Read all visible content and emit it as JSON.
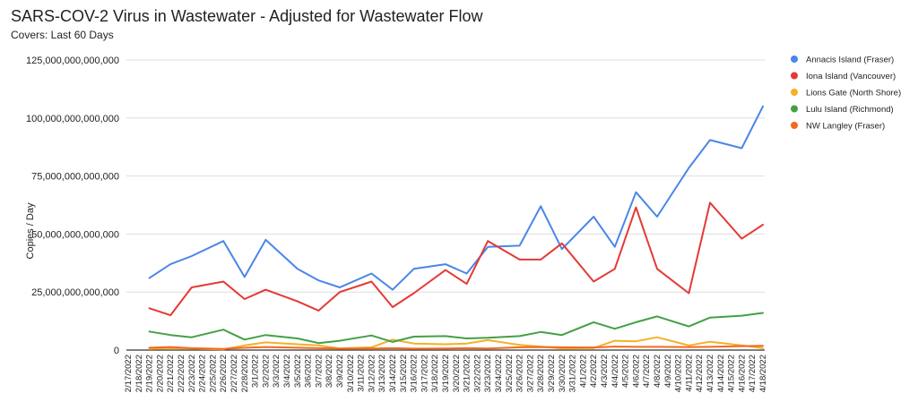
{
  "chart_data": {
    "type": "line",
    "title": "SARS-COV-2 Virus in Wastewater - Adjusted for Wastewater Flow",
    "subtitle": "Covers: Last 60 Days",
    "ylabel": "Copies / Day",
    "xlabel": "",
    "ylim": [
      0,
      125000000000000
    ],
    "yticks": [
      0,
      25000000000000,
      50000000000000,
      75000000000000,
      100000000000000,
      125000000000000
    ],
    "ytick_labels": [
      "0",
      "25,000,000,000,000",
      "50,000,000,000,000",
      "75,000,000,000,000",
      "100,000,000,000,000",
      "125,000,000,000,000"
    ],
    "grid": true,
    "legend_position": "right",
    "x": [
      "2/17/2022",
      "2/18/2022",
      "2/19/2022",
      "2/20/2022",
      "2/21/2022",
      "2/22/2022",
      "2/23/2022",
      "2/24/2022",
      "2/25/2022",
      "2/26/2022",
      "2/27/2022",
      "2/28/2022",
      "3/1/2022",
      "3/2/2022",
      "3/3/2022",
      "3/4/2022",
      "3/5/2022",
      "3/6/2022",
      "3/7/2022",
      "3/8/2022",
      "3/9/2022",
      "3/10/2022",
      "3/11/2022",
      "3/12/2022",
      "3/13/2022",
      "3/14/2022",
      "3/15/2022",
      "3/16/2022",
      "3/17/2022",
      "3/18/2022",
      "3/19/2022",
      "3/20/2022",
      "3/21/2022",
      "3/22/2022",
      "3/23/2022",
      "3/24/2022",
      "3/25/2022",
      "3/26/2022",
      "3/27/2022",
      "3/28/2022",
      "3/29/2022",
      "3/30/2022",
      "3/31/2022",
      "4/1/2022",
      "4/2/2022",
      "4/3/2022",
      "4/4/2022",
      "4/5/2022",
      "4/6/2022",
      "4/7/2022",
      "4/8/2022",
      "4/9/2022",
      "4/10/2022",
      "4/11/2022",
      "4/12/2022",
      "4/13/2022",
      "4/14/2022",
      "4/15/2022",
      "4/16/2022",
      "4/17/2022",
      "4/18/2022"
    ],
    "series": [
      {
        "name": "Annacis Island (Fraser)",
        "color": "#4a86e8",
        "points": [
          [
            "2/19/2022",
            31000000000000
          ],
          [
            "2/21/2022",
            37000000000000
          ],
          [
            "2/23/2022",
            40500000000000
          ],
          [
            "2/26/2022",
            47000000000000
          ],
          [
            "2/28/2022",
            31500000000000
          ],
          [
            "3/2/2022",
            47500000000000
          ],
          [
            "3/5/2022",
            35000000000000
          ],
          [
            "3/7/2022",
            30000000000000
          ],
          [
            "3/9/2022",
            27000000000000
          ],
          [
            "3/12/2022",
            33000000000000
          ],
          [
            "3/14/2022",
            26000000000000
          ],
          [
            "3/16/2022",
            35000000000000
          ],
          [
            "3/19/2022",
            37000000000000
          ],
          [
            "3/21/2022",
            33000000000000
          ],
          [
            "3/23/2022",
            44500000000000
          ],
          [
            "3/26/2022",
            45000000000000
          ],
          [
            "3/28/2022",
            62000000000000
          ],
          [
            "3/30/2022",
            43500000000000
          ],
          [
            "4/2/2022",
            57500000000000
          ],
          [
            "4/4/2022",
            44500000000000
          ],
          [
            "4/6/2022",
            68000000000000
          ],
          [
            "4/8/2022",
            57500000000000
          ],
          [
            "4/11/2022",
            78500000000000
          ],
          [
            "4/13/2022",
            90500000000000
          ],
          [
            "4/16/2022",
            87000000000000
          ],
          [
            "4/18/2022",
            105000000000000
          ]
        ]
      },
      {
        "name": "Iona Island (Vancouver)",
        "color": "#e53935",
        "points": [
          [
            "2/19/2022",
            18000000000000
          ],
          [
            "2/21/2022",
            15000000000000
          ],
          [
            "2/23/2022",
            27000000000000
          ],
          [
            "2/26/2022",
            29500000000000
          ],
          [
            "2/28/2022",
            22000000000000
          ],
          [
            "3/2/2022",
            26000000000000
          ],
          [
            "3/5/2022",
            21000000000000
          ],
          [
            "3/7/2022",
            17000000000000
          ],
          [
            "3/9/2022",
            25000000000000
          ],
          [
            "3/12/2022",
            29500000000000
          ],
          [
            "3/14/2022",
            18500000000000
          ],
          [
            "3/16/2022",
            24500000000000
          ],
          [
            "3/19/2022",
            34500000000000
          ],
          [
            "3/21/2022",
            28500000000000
          ],
          [
            "3/23/2022",
            47000000000000
          ],
          [
            "3/26/2022",
            39000000000000
          ],
          [
            "3/28/2022",
            39000000000000
          ],
          [
            "3/30/2022",
            46000000000000
          ],
          [
            "4/2/2022",
            29500000000000
          ],
          [
            "4/4/2022",
            35000000000000
          ],
          [
            "4/6/2022",
            61500000000000
          ],
          [
            "4/8/2022",
            35000000000000
          ],
          [
            "4/11/2022",
            24500000000000
          ],
          [
            "4/13/2022",
            63500000000000
          ],
          [
            "4/16/2022",
            48000000000000
          ],
          [
            "4/18/2022",
            54000000000000
          ]
        ]
      },
      {
        "name": "Lions Gate (North Shore)",
        "color": "#f6b026",
        "points": [
          [
            "2/19/2022",
            500000000000
          ],
          [
            "2/21/2022",
            800000000000
          ],
          [
            "2/23/2022",
            600000000000
          ],
          [
            "2/26/2022",
            300000000000
          ],
          [
            "2/28/2022",
            2000000000000
          ],
          [
            "3/2/2022",
            3300000000000
          ],
          [
            "3/5/2022",
            2500000000000
          ],
          [
            "3/7/2022",
            2000000000000
          ],
          [
            "3/9/2022",
            700000000000
          ],
          [
            "3/12/2022",
            1200000000000
          ],
          [
            "3/14/2022",
            4500000000000
          ],
          [
            "3/16/2022",
            2800000000000
          ],
          [
            "3/19/2022",
            2500000000000
          ],
          [
            "3/21/2022",
            2800000000000
          ],
          [
            "3/23/2022",
            4300000000000
          ],
          [
            "3/26/2022",
            2200000000000
          ],
          [
            "3/28/2022",
            1500000000000
          ],
          [
            "3/30/2022",
            700000000000
          ],
          [
            "4/2/2022",
            900000000000
          ],
          [
            "4/4/2022",
            4000000000000
          ],
          [
            "4/6/2022",
            3800000000000
          ],
          [
            "4/8/2022",
            5500000000000
          ],
          [
            "4/11/2022",
            2000000000000
          ],
          [
            "4/13/2022",
            3600000000000
          ],
          [
            "4/16/2022",
            2000000000000
          ],
          [
            "4/18/2022",
            800000000000
          ]
        ]
      },
      {
        "name": "Lulu Island (Richmond)",
        "color": "#43a047",
        "points": [
          [
            "2/19/2022",
            8000000000000
          ],
          [
            "2/21/2022",
            6500000000000
          ],
          [
            "2/23/2022",
            5500000000000
          ],
          [
            "2/26/2022",
            8800000000000
          ],
          [
            "2/28/2022",
            4500000000000
          ],
          [
            "3/2/2022",
            6500000000000
          ],
          [
            "3/5/2022",
            5000000000000
          ],
          [
            "3/7/2022",
            3000000000000
          ],
          [
            "3/9/2022",
            4000000000000
          ],
          [
            "3/12/2022",
            6300000000000
          ],
          [
            "3/14/2022",
            3500000000000
          ],
          [
            "3/16/2022",
            5800000000000
          ],
          [
            "3/19/2022",
            6000000000000
          ],
          [
            "3/21/2022",
            5000000000000
          ],
          [
            "3/23/2022",
            5300000000000
          ],
          [
            "3/26/2022",
            6000000000000
          ],
          [
            "3/28/2022",
            7800000000000
          ],
          [
            "3/30/2022",
            6500000000000
          ],
          [
            "4/2/2022",
            12000000000000
          ],
          [
            "4/4/2022",
            9200000000000
          ],
          [
            "4/6/2022",
            12000000000000
          ],
          [
            "4/8/2022",
            14500000000000
          ],
          [
            "4/11/2022",
            10200000000000
          ],
          [
            "4/13/2022",
            14000000000000
          ],
          [
            "4/16/2022",
            14800000000000
          ],
          [
            "4/18/2022",
            16000000000000
          ]
        ]
      },
      {
        "name": "NW Langley (Fraser)",
        "color": "#f4691e",
        "points": [
          [
            "2/19/2022",
            1000000000000
          ],
          [
            "2/21/2022",
            1300000000000
          ],
          [
            "2/23/2022",
            800000000000
          ],
          [
            "2/26/2022",
            500000000000
          ],
          [
            "2/28/2022",
            1000000000000
          ],
          [
            "3/2/2022",
            1300000000000
          ],
          [
            "3/5/2022",
            1000000000000
          ],
          [
            "3/7/2022",
            800000000000
          ],
          [
            "3/9/2022",
            600000000000
          ],
          [
            "3/12/2022",
            700000000000
          ],
          [
            "3/14/2022",
            800000000000
          ],
          [
            "3/16/2022",
            600000000000
          ],
          [
            "3/19/2022",
            700000000000
          ],
          [
            "3/21/2022",
            800000000000
          ],
          [
            "3/23/2022",
            700000000000
          ],
          [
            "3/26/2022",
            1200000000000
          ],
          [
            "3/28/2022",
            1300000000000
          ],
          [
            "3/30/2022",
            1200000000000
          ],
          [
            "4/2/2022",
            1100000000000
          ],
          [
            "4/4/2022",
            1500000000000
          ],
          [
            "4/6/2022",
            1400000000000
          ],
          [
            "4/8/2022",
            1400000000000
          ],
          [
            "4/11/2022",
            1300000000000
          ],
          [
            "4/13/2022",
            1400000000000
          ],
          [
            "4/16/2022",
            1700000000000
          ],
          [
            "4/18/2022",
            1800000000000
          ]
        ]
      }
    ]
  }
}
